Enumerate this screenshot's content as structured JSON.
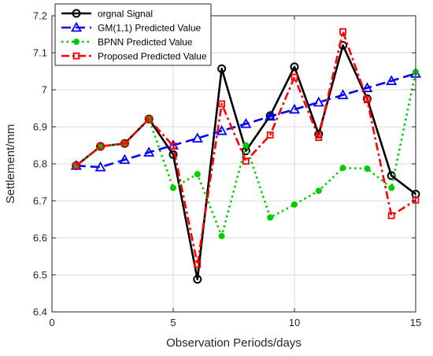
{
  "chart_data": {
    "type": "line",
    "xlabel": "Observation Periods/days",
    "ylabel": "Settlement/mm",
    "xlim": [
      0,
      15
    ],
    "ylim": [
      6.4,
      7.2
    ],
    "x_ticks": [
      0,
      5,
      10,
      15
    ],
    "y_ticks": [
      6.4,
      6.5,
      6.6,
      6.7,
      6.8,
      6.9,
      7.0,
      7.1,
      7.2
    ],
    "x_tick_labels": [
      "0",
      "5",
      "10",
      "15"
    ],
    "y_tick_labels": [
      "6.4",
      "6.5",
      "6.6",
      "6.7",
      "6.8",
      "6.9",
      "7",
      "7.1",
      "7.2"
    ],
    "grid": true,
    "legend_position": "top-left",
    "x": [
      1,
      2,
      3,
      4,
      5,
      6,
      7,
      8,
      9,
      10,
      11,
      12,
      13,
      14,
      15
    ],
    "series": [
      {
        "name": "orgnal Signal",
        "color": "#000000",
        "line_style": "solid",
        "marker": "circle",
        "values": [
          6.795,
          6.847,
          6.855,
          6.921,
          6.825,
          6.488,
          7.057,
          6.835,
          6.93,
          7.062,
          6.88,
          7.12,
          6.976,
          6.768,
          6.718
        ]
      },
      {
        "name": "GM(1,1) Predicted Value",
        "color": "#0000ff",
        "line_style": "dashed",
        "marker": "triangle",
        "values": [
          6.795,
          6.791,
          6.811,
          6.831,
          6.85,
          6.869,
          6.889,
          6.908,
          6.928,
          6.947,
          6.966,
          6.986,
          7.005,
          7.024,
          7.044
        ]
      },
      {
        "name": "BPNN Predicted Value",
        "color": "#00cc00",
        "line_style": "dotted",
        "marker": "dot",
        "values": [
          6.795,
          6.847,
          6.855,
          6.921,
          6.735,
          6.772,
          6.605,
          6.85,
          6.655,
          6.69,
          6.727,
          6.789,
          6.787,
          6.735,
          7.048
        ]
      },
      {
        "name": "Proposed Predicted Value",
        "color": "#ff0000",
        "line_style": "dashdot",
        "marker": "square",
        "values": [
          6.795,
          6.847,
          6.855,
          6.921,
          6.848,
          6.528,
          6.962,
          6.807,
          6.878,
          7.034,
          6.871,
          7.157,
          6.973,
          6.66,
          6.702
        ]
      }
    ]
  }
}
